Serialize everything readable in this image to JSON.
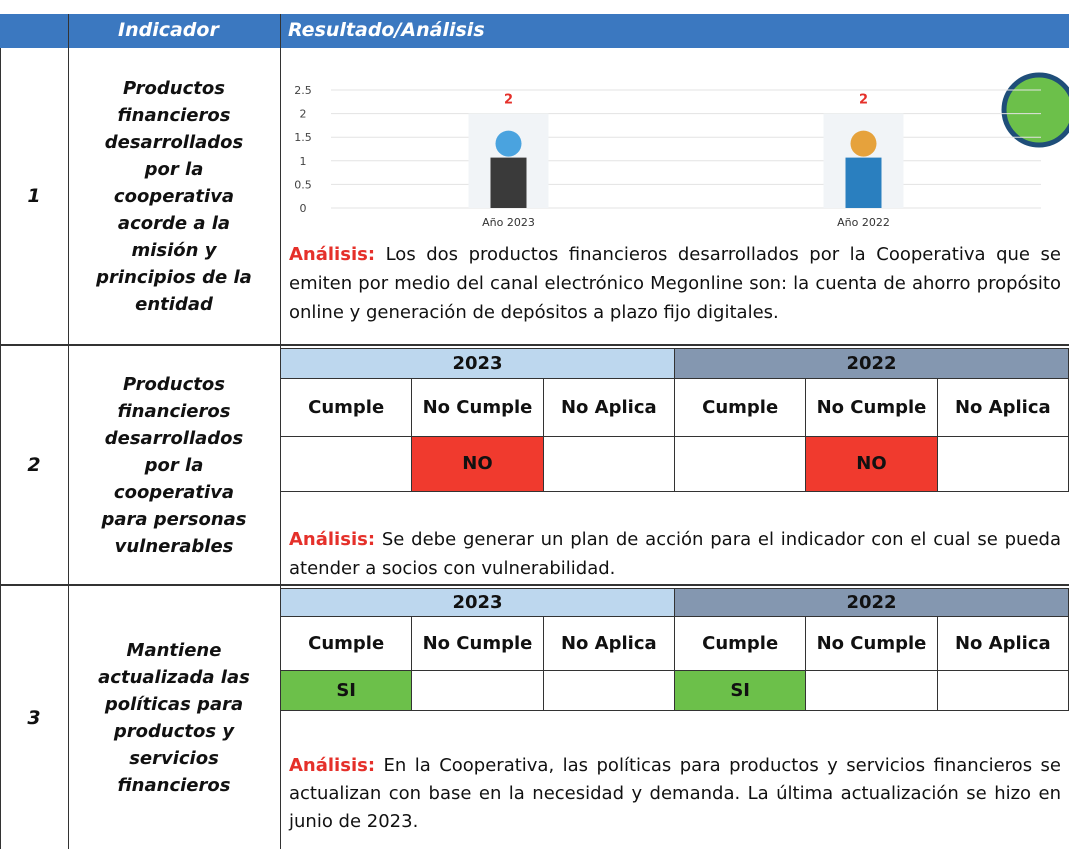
{
  "header": {
    "indicator": "Indicador",
    "result": "Resultado/Análisis"
  },
  "rows": [
    {
      "number": "1",
      "indicator": "Productos financieros desarrollados por la cooperativa acorde a la misión y principios de la entidad",
      "chart": {
        "type": "bar",
        "categories": [
          "Año 2023",
          "Año 2022"
        ],
        "values": [
          2,
          2
        ],
        "ylim": [
          0,
          2.5
        ],
        "yticks": [
          0,
          0.5,
          1,
          1.5,
          2,
          2.5
        ]
      },
      "analysis_label": "Análisis:",
      "analysis": "Los dos productos financieros desarrollados por la Cooperativa que se emiten por medio del canal electrónico Megonline son: la cuenta de ahorro propósito online y generación de depósitos a plazo fijo digitales."
    },
    {
      "number": "2",
      "indicator": "Productos financieros desarrollados por la cooperativa para personas vulnerables",
      "years": [
        {
          "year": "2023",
          "columns": [
            "Cumple",
            "No Cumple",
            "No Aplica"
          ],
          "cells": [
            null,
            "NO",
            null
          ]
        },
        {
          "year": "2022",
          "columns": [
            "Cumple",
            "No Cumple",
            "No Aplica"
          ],
          "cells": [
            null,
            "NO",
            null
          ]
        }
      ],
      "analysis_label": "Análisis:",
      "analysis": "Se debe generar un plan de acción para el indicador con el cual se pueda atender a socios con vulnerabilidad."
    },
    {
      "number": "3",
      "indicator": "Mantiene actualizada las políticas para productos y servicios financieros",
      "years": [
        {
          "year": "2023",
          "columns": [
            "Cumple",
            "No Cumple",
            "No Aplica"
          ],
          "cells": [
            "SI",
            null,
            null
          ]
        },
        {
          "year": "2022",
          "columns": [
            "Cumple",
            "No Cumple",
            "No Aplica"
          ],
          "cells": [
            "SI",
            null,
            null
          ]
        }
      ],
      "analysis_label": "Análisis:",
      "analysis": "En la Cooperativa, las políticas para productos y servicios financieros se actualizan con base en la necesidad y demanda. La última actualización se hizo en junio de 2023."
    }
  ]
}
